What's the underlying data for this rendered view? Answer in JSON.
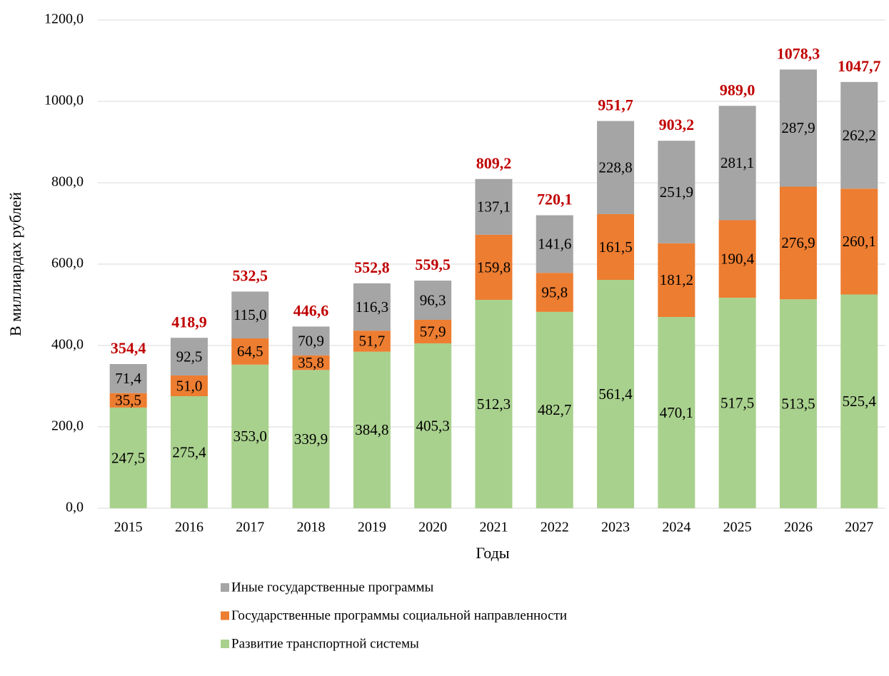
{
  "chart_data": {
    "type": "stacked_bar",
    "x_label": "Годы",
    "y_label": "В миллиардах рублей",
    "categories": [
      "2015",
      "2016",
      "2017",
      "2018",
      "2019",
      "2020",
      "2021",
      "2022",
      "2023",
      "2024",
      "2025",
      "2026",
      "2027"
    ],
    "series": [
      {
        "name": "Развитие транспортной системы",
        "color": "#a9d18e",
        "values": [
          247.5,
          275.4,
          353.0,
          339.9,
          384.8,
          405.3,
          512.3,
          482.7,
          561.4,
          470.1,
          517.5,
          513.5,
          525.4
        ],
        "value_labels": [
          "247,5",
          "275,4",
          "353,0",
          "339,9",
          "384,8",
          "405,3",
          "512,3",
          "482,7",
          "561,4",
          "470,1",
          "517,5",
          "513,5",
          "525,4"
        ]
      },
      {
        "name": "Государственные программы социальной направленности",
        "color": "#ed7d31",
        "values": [
          35.5,
          51.0,
          64.5,
          35.8,
          51.7,
          57.9,
          159.8,
          95.8,
          161.5,
          181.2,
          190.4,
          276.9,
          260.1
        ],
        "value_labels": [
          "35,5",
          "51,0",
          "64,5",
          "35,8",
          "51,7",
          "57,9",
          "159,8",
          "95,8",
          "161,5",
          "181,2",
          "190,4",
          "276,9",
          "260,1"
        ]
      },
      {
        "name": "Иные государственные программы",
        "color": "#a5a5a5",
        "values": [
          71.4,
          92.5,
          115.0,
          70.9,
          116.3,
          96.3,
          137.1,
          141.6,
          228.8,
          251.9,
          281.1,
          287.9,
          262.2
        ],
        "value_labels": [
          "71,4",
          "92,5",
          "115,0",
          "70,9",
          "116,3",
          "96,3",
          "137,1",
          "141,6",
          "228,8",
          "251,9",
          "281,1",
          "287,9",
          "262,2"
        ]
      }
    ],
    "totals": [
      354.4,
      418.9,
      532.5,
      446.6,
      552.8,
      559.5,
      809.2,
      720.1,
      951.7,
      903.2,
      989.0,
      1078.3,
      1047.7
    ],
    "totals_labels": [
      "354,4",
      "418,9",
      "532,5",
      "446,6",
      "552,8",
      "559,5",
      "809,2",
      "720,1",
      "951,7",
      "903,2",
      "989,0",
      "1078,3",
      "1047,7"
    ],
    "totals_color": "#c00000",
    "ylim": [
      0,
      1200
    ],
    "yticks": [
      {
        "value": 0,
        "label": "0,0"
      },
      {
        "value": 200,
        "label": "200,0"
      },
      {
        "value": 400,
        "label": "400,0"
      },
      {
        "value": 600,
        "label": "600,0"
      },
      {
        "value": 800,
        "label": "800,0"
      },
      {
        "value": 1000,
        "label": "1000,0"
      },
      {
        "value": 1200,
        "label": "1200,0"
      }
    ],
    "grid": true,
    "legend": "bottom"
  }
}
